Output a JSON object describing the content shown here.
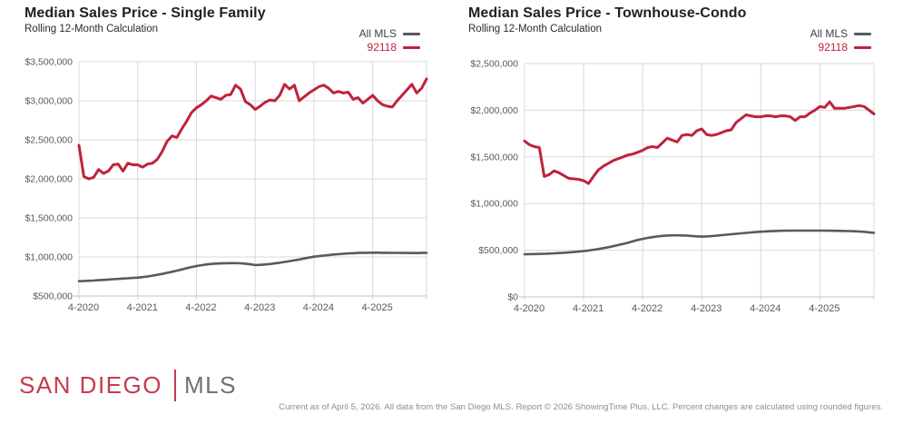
{
  "logo": {
    "primary": "SAN DIEGO",
    "secondary": "MLS"
  },
  "footer": {
    "text": "Current as of April 5, 2026. All data from the San Diego MLS. Report © 2026 ShowingTime Plus, LLC. Percent changes are calculated using rounded figures."
  },
  "colors": {
    "accent_red": "#c0223b",
    "line_gray": "#595a5c",
    "grid": "#d8d8d8",
    "axis": "#c2c2c2",
    "tick_text": "#58595b"
  },
  "chart_data": [
    {
      "type": "line",
      "title": "Median Sales Price - Single Family",
      "subtitle": "Rolling 12-Month Calculation",
      "legend_position": "top-right",
      "grid": true,
      "n_points": 72,
      "x_start": "4-2020",
      "x_end": "3-2026",
      "x_tick_labels": [
        "4-2020",
        "4-2021",
        "4-2022",
        "4-2023",
        "4-2024",
        "4-2025"
      ],
      "x_tick_indices": [
        0,
        12,
        24,
        36,
        48,
        60
      ],
      "ylim": [
        500000,
        3500000
      ],
      "y_tick_step": 500000,
      "series": [
        {
          "name": "All MLS",
          "color": "#595a5c",
          "values": [
            690000,
            692000,
            695000,
            698000,
            702000,
            706000,
            710000,
            715000,
            719000,
            723000,
            727000,
            731000,
            735000,
            742000,
            750000,
            760000,
            771000,
            783000,
            796000,
            810000,
            824000,
            840000,
            856000,
            871000,
            884000,
            894000,
            903000,
            910000,
            915000,
            918000,
            920000,
            921000,
            921000,
            919000,
            914000,
            906000,
            897000,
            899000,
            903000,
            909000,
            917000,
            926000,
            936000,
            946000,
            957000,
            968000,
            980000,
            992000,
            1003000,
            1011000,
            1018000,
            1025000,
            1031000,
            1036000,
            1041000,
            1045000,
            1048000,
            1051000,
            1053000,
            1054000,
            1055000,
            1055000,
            1054000,
            1053000,
            1052000,
            1052000,
            1051000,
            1051000,
            1050000,
            1050000,
            1051000,
            1053000
          ]
        },
        {
          "name": "92118",
          "color": "#c0223b",
          "values": [
            2430000,
            2030000,
            2000000,
            2020000,
            2120000,
            2070000,
            2100000,
            2180000,
            2190000,
            2100000,
            2200000,
            2180000,
            2180000,
            2150000,
            2190000,
            2200000,
            2250000,
            2350000,
            2480000,
            2550000,
            2530000,
            2640000,
            2740000,
            2850000,
            2910000,
            2950000,
            3000000,
            3060000,
            3040000,
            3020000,
            3070000,
            3080000,
            3200000,
            3150000,
            2990000,
            2950000,
            2890000,
            2930000,
            2980000,
            3010000,
            3000000,
            3070000,
            3210000,
            3150000,
            3200000,
            3000000,
            3050000,
            3100000,
            3140000,
            3180000,
            3200000,
            3160000,
            3100000,
            3120000,
            3100000,
            3110000,
            3020000,
            3040000,
            2970000,
            3020000,
            3070000,
            3000000,
            2950000,
            2930000,
            2920000,
            3000000,
            3070000,
            3140000,
            3210000,
            3100000,
            3160000,
            3280000
          ]
        }
      ]
    },
    {
      "type": "line",
      "title": "Median Sales Price - Townhouse-Condo",
      "subtitle": "Rolling 12-Month Calculation",
      "legend_position": "top-right",
      "grid": true,
      "n_points": 72,
      "x_start": "4-2020",
      "x_end": "3-2026",
      "x_tick_labels": [
        "4-2020",
        "4-2021",
        "4-2022",
        "4-2023",
        "4-2024",
        "4-2025"
      ],
      "x_tick_indices": [
        0,
        12,
        24,
        36,
        48,
        60
      ],
      "ylim": [
        0,
        2500000
      ],
      "y_tick_step": 500000,
      "series": [
        {
          "name": "All MLS",
          "color": "#595a5c",
          "values": [
            457000,
            458000,
            459000,
            460000,
            462000,
            464000,
            467000,
            470000,
            473000,
            477000,
            481000,
            485000,
            490000,
            497000,
            505000,
            513000,
            522000,
            532000,
            543000,
            555000,
            567000,
            580000,
            595000,
            610000,
            622000,
            632000,
            640000,
            648000,
            654000,
            658000,
            660000,
            660000,
            659000,
            657000,
            653000,
            649000,
            646000,
            648000,
            652000,
            656000,
            661000,
            666000,
            671000,
            676000,
            681000,
            686000,
            691000,
            695000,
            698000,
            701000,
            704000,
            706000,
            708000,
            709000,
            710000,
            710000,
            710000,
            710000,
            710000,
            710000,
            710000,
            710000,
            709000,
            708000,
            707000,
            706000,
            705000,
            703000,
            700000,
            697000,
            692000,
            687000
          ]
        },
        {
          "name": "92118",
          "color": "#c0223b",
          "values": [
            1670000,
            1630000,
            1610000,
            1600000,
            1290000,
            1310000,
            1350000,
            1330000,
            1300000,
            1270000,
            1265000,
            1260000,
            1245000,
            1215000,
            1290000,
            1360000,
            1400000,
            1430000,
            1460000,
            1480000,
            1500000,
            1520000,
            1530000,
            1550000,
            1570000,
            1600000,
            1610000,
            1600000,
            1650000,
            1700000,
            1680000,
            1660000,
            1730000,
            1740000,
            1730000,
            1780000,
            1800000,
            1740000,
            1730000,
            1740000,
            1760000,
            1780000,
            1790000,
            1870000,
            1910000,
            1950000,
            1940000,
            1930000,
            1930000,
            1940000,
            1940000,
            1930000,
            1940000,
            1940000,
            1930000,
            1890000,
            1930000,
            1930000,
            1970000,
            2000000,
            2040000,
            2030000,
            2090000,
            2020000,
            2020000,
            2020000,
            2030000,
            2040000,
            2050000,
            2040000,
            2000000,
            1960000
          ]
        }
      ]
    }
  ]
}
